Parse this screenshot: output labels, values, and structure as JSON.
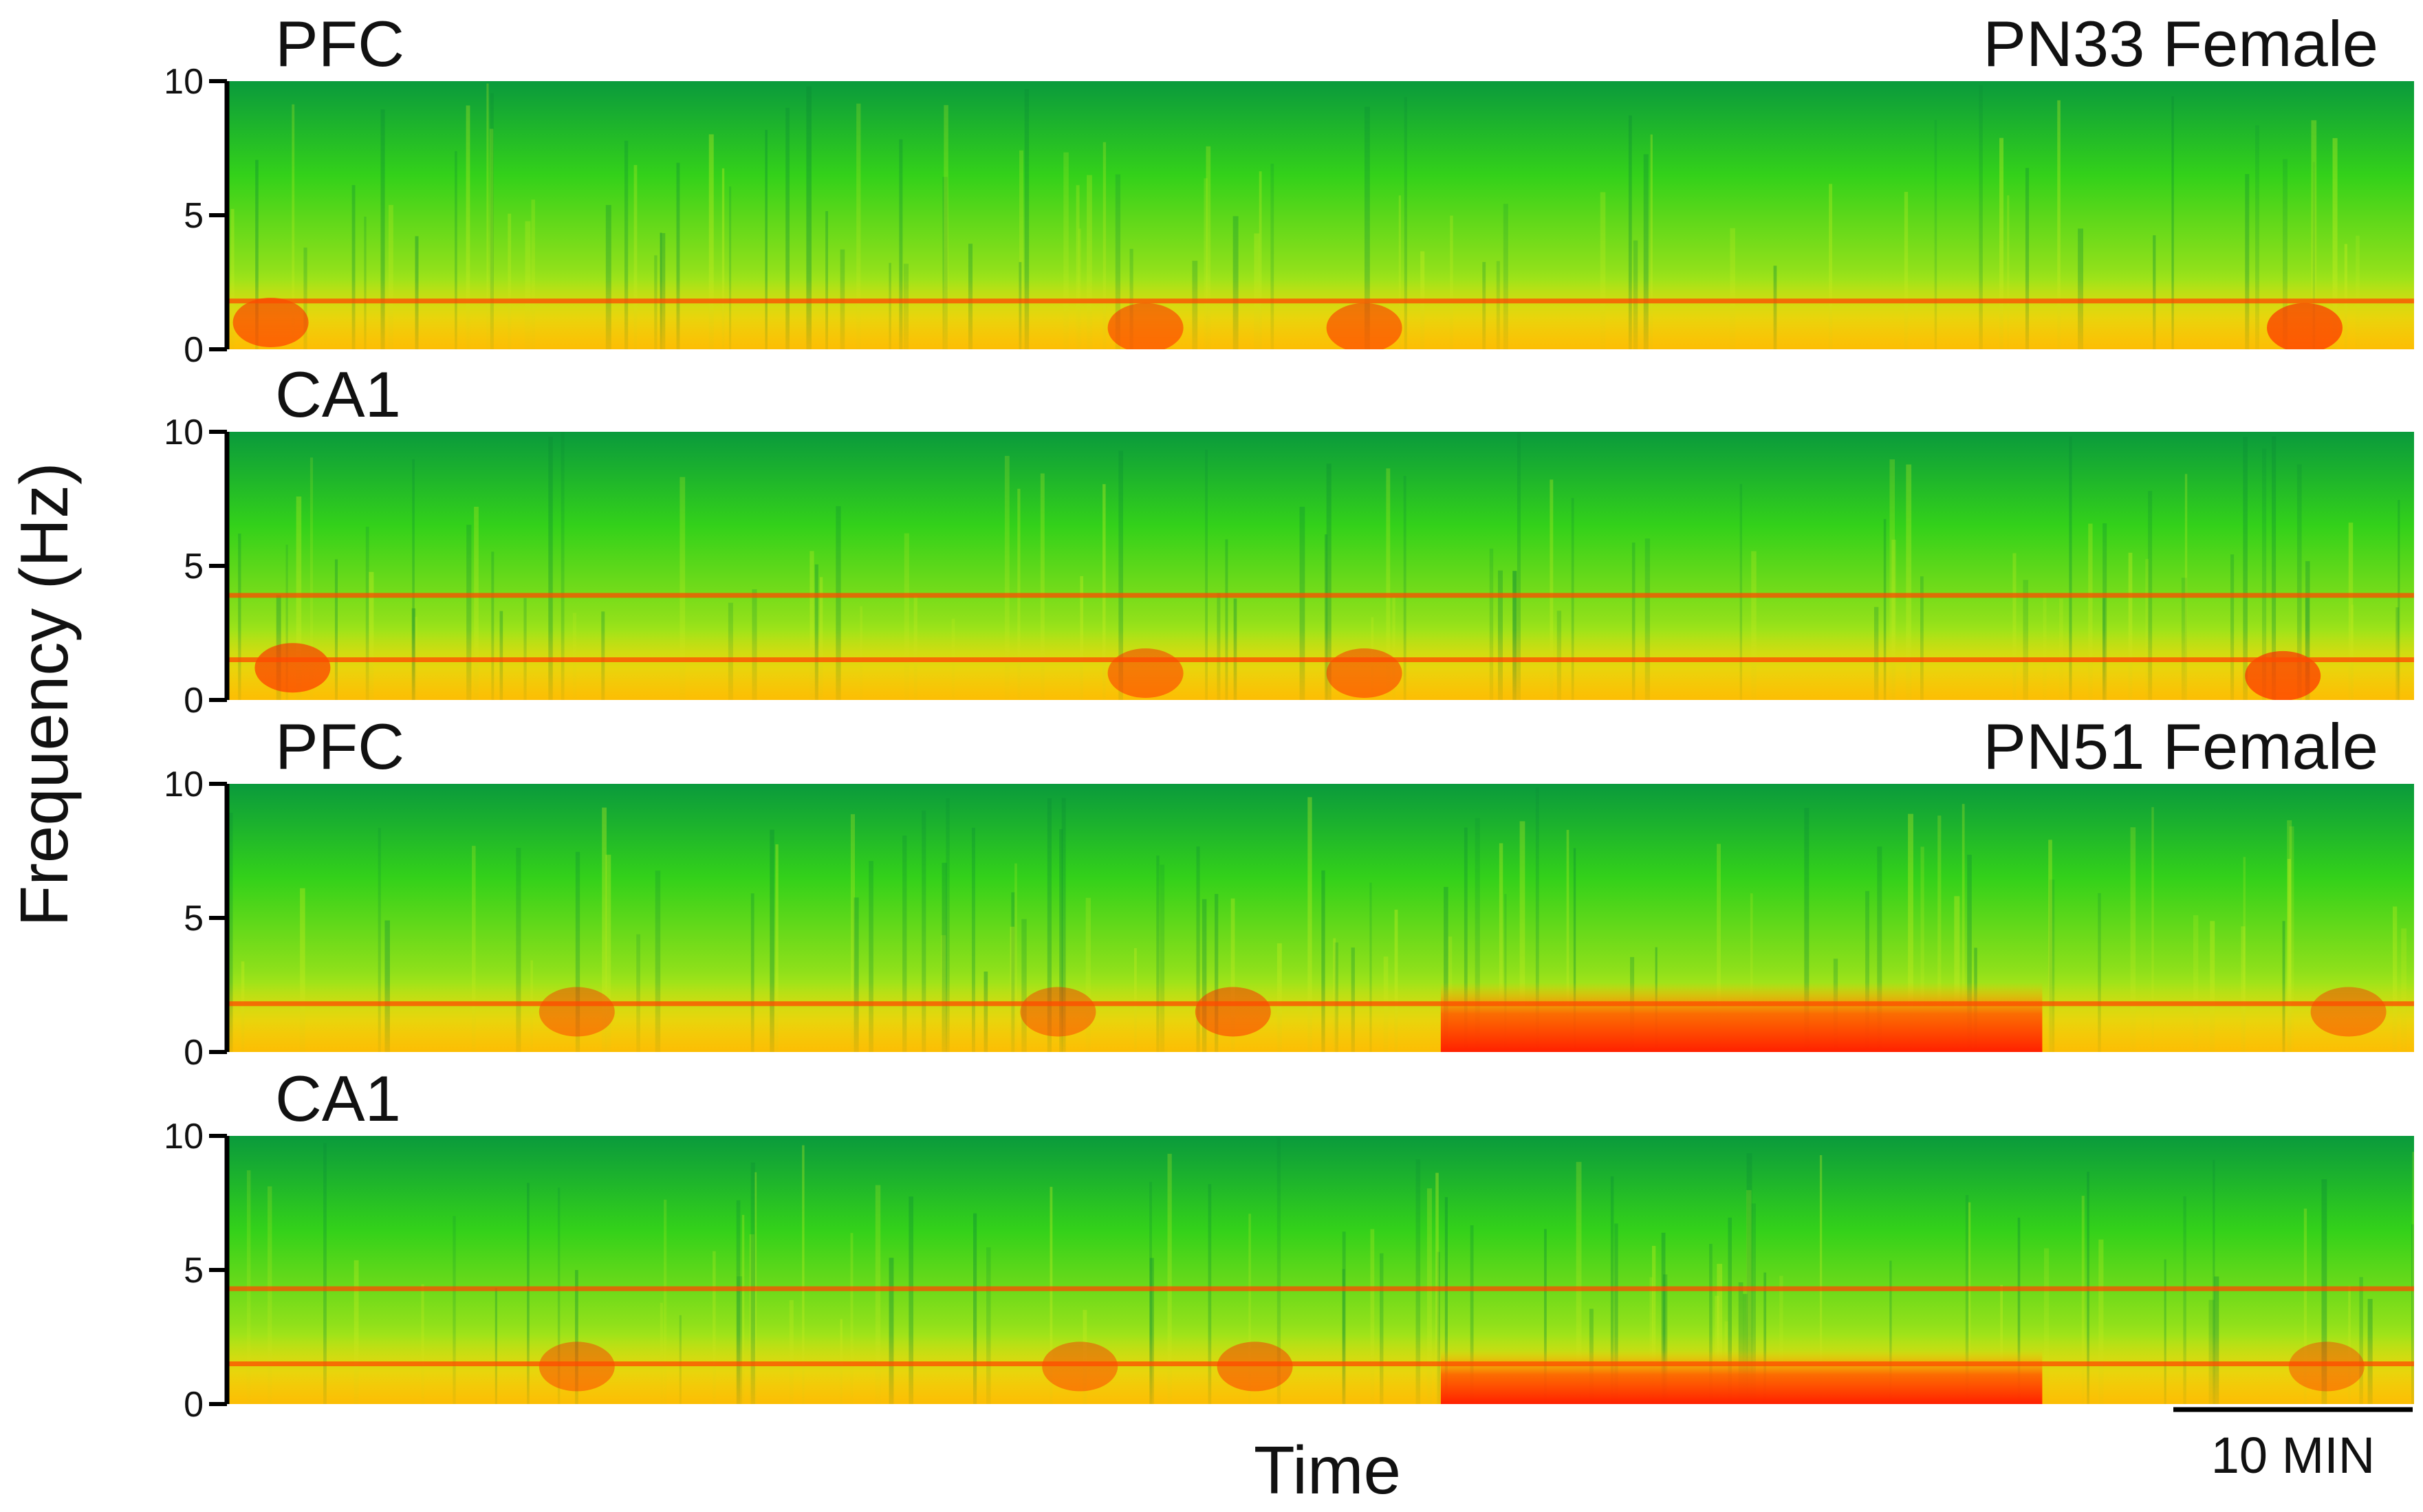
{
  "chart_data": {
    "type": "heatmap",
    "ylabel": "Frequency (Hz)",
    "xlabel": "Time",
    "ylim": [
      0,
      10
    ],
    "yticks": [
      0,
      5,
      10
    ],
    "scale_bar": {
      "label": "10 MIN",
      "minutes": 10
    },
    "colormap": {
      "low": "#0a9a3c",
      "mid_low": "#33d11a",
      "mid": "#d8ee14",
      "mid_high": "#ffb000",
      "high": "#ff2000"
    },
    "panels": [
      {
        "label": "PFC",
        "group": "PN33 Female",
        "band_lines": [
          1.8
        ],
        "time_ranges": [],
        "hotspots": [
          {
            "t": 0.02,
            "f": 1.0,
            "intensity": 0.8
          },
          {
            "t": 0.42,
            "f": 0.8,
            "intensity": 0.75
          },
          {
            "t": 0.52,
            "f": 0.8,
            "intensity": 0.75
          },
          {
            "t": 0.95,
            "f": 0.8,
            "intensity": 0.9
          }
        ]
      },
      {
        "label": "CA1",
        "group": "",
        "band_lines": [
          3.9,
          1.5
        ],
        "time_ranges": [],
        "hotspots": [
          {
            "t": 0.03,
            "f": 1.2,
            "intensity": 0.85
          },
          {
            "t": 0.42,
            "f": 1.0,
            "intensity": 0.7
          },
          {
            "t": 0.52,
            "f": 1.0,
            "intensity": 0.7
          },
          {
            "t": 0.94,
            "f": 0.9,
            "intensity": 0.9
          }
        ]
      },
      {
        "label": "PFC",
        "group": "PN51 Female",
        "band_lines": [
          1.8
        ],
        "time_ranges": [
          {
            "start": 0.555,
            "end": 0.83,
            "f_low": 0,
            "f_high": 2.6,
            "intensity": 1.0
          }
        ],
        "hotspots": [
          {
            "t": 0.16,
            "f": 1.5,
            "intensity": 0.6
          },
          {
            "t": 0.38,
            "f": 1.5,
            "intensity": 0.6
          },
          {
            "t": 0.46,
            "f": 1.5,
            "intensity": 0.7
          },
          {
            "t": 0.97,
            "f": 1.5,
            "intensity": 0.6
          }
        ]
      },
      {
        "label": "CA1",
        "group": "",
        "band_lines": [
          4.3,
          1.5
        ],
        "time_ranges": [
          {
            "start": 0.555,
            "end": 0.83,
            "f_low": 0,
            "f_high": 2.0,
            "intensity": 1.0
          }
        ],
        "hotspots": [
          {
            "t": 0.16,
            "f": 1.4,
            "intensity": 0.6
          },
          {
            "t": 0.39,
            "f": 1.4,
            "intensity": 0.6
          },
          {
            "t": 0.47,
            "f": 1.4,
            "intensity": 0.65
          },
          {
            "t": 0.96,
            "f": 1.4,
            "intensity": 0.55
          }
        ]
      }
    ]
  }
}
